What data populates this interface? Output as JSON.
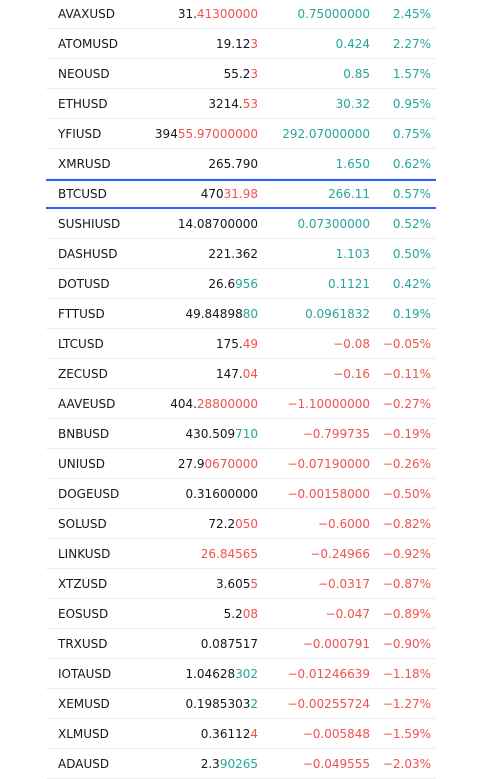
{
  "watchlist": {
    "up_color": "#26a69a",
    "down_color": "#ef5350",
    "rows": [
      {
        "symbol": "AVAXUSD",
        "price": {
          "plain": "31.",
          "highlight": "41300000",
          "highlight_color": "#ef5350"
        },
        "change": "0.75000000",
        "change_pct": "2.45%"
      },
      {
        "symbol": "ATOMUSD",
        "price": {
          "plain": "19.12",
          "highlight": "3",
          "highlight_color": "#ef5350"
        },
        "change": "0.424",
        "change_pct": "2.27%"
      },
      {
        "symbol": "NEOUSD",
        "price": {
          "plain": "55.2",
          "highlight": "3",
          "highlight_color": "#ef5350"
        },
        "change": "0.85",
        "change_pct": "1.57%"
      },
      {
        "symbol": "ETHUSD",
        "price": {
          "plain": "3214.",
          "highlight": "53",
          "highlight_color": "#ef5350"
        },
        "change": "30.32",
        "change_pct": "0.95%"
      },
      {
        "symbol": "YFIUSD",
        "price": {
          "plain": "394",
          "highlight": "55.97000000",
          "highlight_color": "#ef5350"
        },
        "change": "292.07000000",
        "change_pct": "0.75%"
      },
      {
        "symbol": "XMRUSD",
        "price": {
          "plain": "265.790"
        },
        "change": "1.650",
        "change_pct": "0.62%"
      },
      {
        "symbol": "BTCUSD",
        "selected": true,
        "price": {
          "plain": "470",
          "highlight": "31.98",
          "highlight_color": "#ef5350"
        },
        "change": "266.11",
        "change_pct": "0.57%"
      },
      {
        "symbol": "SUSHIUSD",
        "price": {
          "plain": "14.08700000"
        },
        "change": "0.07300000",
        "change_pct": "0.52%"
      },
      {
        "symbol": "DASHUSD",
        "price": {
          "plain": "221.362"
        },
        "change": "1.103",
        "change_pct": "0.50%"
      },
      {
        "symbol": "DOTUSD",
        "price": {
          "plain": "26.6",
          "highlight": "956",
          "highlight_color": "#26a69a"
        },
        "change": "0.1121",
        "change_pct": "0.42%"
      },
      {
        "symbol": "FTTUSD",
        "price": {
          "plain": "49.84898",
          "highlight": "80",
          "highlight_color": "#26a69a"
        },
        "change": "0.0961832",
        "change_pct": "0.19%"
      },
      {
        "symbol": "LTCUSD",
        "price": {
          "plain": "175.",
          "highlight": "49",
          "highlight_color": "#ef5350"
        },
        "change": "−0.08",
        "change_pct": "−0.05%"
      },
      {
        "symbol": "ZECUSD",
        "price": {
          "plain": "147.",
          "highlight": "04",
          "highlight_color": "#ef5350"
        },
        "change": "−0.16",
        "change_pct": "−0.11%"
      },
      {
        "symbol": "AAVEUSD",
        "price": {
          "plain": "404.",
          "highlight": "28800000",
          "highlight_color": "#ef5350"
        },
        "change": "−1.10000000",
        "change_pct": "−0.27%"
      },
      {
        "symbol": "BNBUSD",
        "price": {
          "plain": "430.509",
          "highlight": "710",
          "highlight_color": "#26a69a"
        },
        "change": "−0.799735",
        "change_pct": "−0.19%"
      },
      {
        "symbol": "UNIUSD",
        "price": {
          "plain": "27.9",
          "highlight": "0670000",
          "highlight_color": "#ef5350"
        },
        "change": "−0.07190000",
        "change_pct": "−0.26%"
      },
      {
        "symbol": "DOGEUSD",
        "price": {
          "plain": "0.31600000"
        },
        "change": "−0.00158000",
        "change_pct": "−0.50%"
      },
      {
        "symbol": "SOLUSD",
        "price": {
          "plain": "72.2",
          "highlight": "050",
          "highlight_color": "#ef5350"
        },
        "change": "−0.6000",
        "change_pct": "−0.82%"
      },
      {
        "symbol": "LINKUSD",
        "price": {
          "highlight": "26.84565",
          "highlight_color": "#ef5350"
        },
        "change": "−0.24966",
        "change_pct": "−0.92%"
      },
      {
        "symbol": "XTZUSD",
        "price": {
          "plain": "3.605",
          "highlight": "5",
          "highlight_color": "#ef5350"
        },
        "change": "−0.0317",
        "change_pct": "−0.87%"
      },
      {
        "symbol": "EOSUSD",
        "price": {
          "plain": "5.2",
          "highlight": "08",
          "highlight_color": "#ef5350"
        },
        "change": "−0.047",
        "change_pct": "−0.89%"
      },
      {
        "symbol": "TRXUSD",
        "price": {
          "plain": "0.087517"
        },
        "change": "−0.000791",
        "change_pct": "−0.90%"
      },
      {
        "symbol": "IOTAUSD",
        "price": {
          "plain": "1.04628",
          "highlight": "302",
          "highlight_color": "#26a69a"
        },
        "change": "−0.01246639",
        "change_pct": "−1.18%"
      },
      {
        "symbol": "XEMUSD",
        "price": {
          "plain": "0.1985303",
          "highlight": "2",
          "highlight_color": "#26a69a"
        },
        "change": "−0.00255724",
        "change_pct": "−1.27%"
      },
      {
        "symbol": "XLMUSD",
        "price": {
          "plain": "0.36112",
          "highlight": "4",
          "highlight_color": "#ef5350"
        },
        "change": "−0.005848",
        "change_pct": "−1.59%"
      },
      {
        "symbol": "ADAUSD",
        "price": {
          "plain": "2.3",
          "highlight": "90265",
          "highlight_color": "#26a69a"
        },
        "change": "−0.049555",
        "change_pct": "−2.03%"
      }
    ]
  }
}
